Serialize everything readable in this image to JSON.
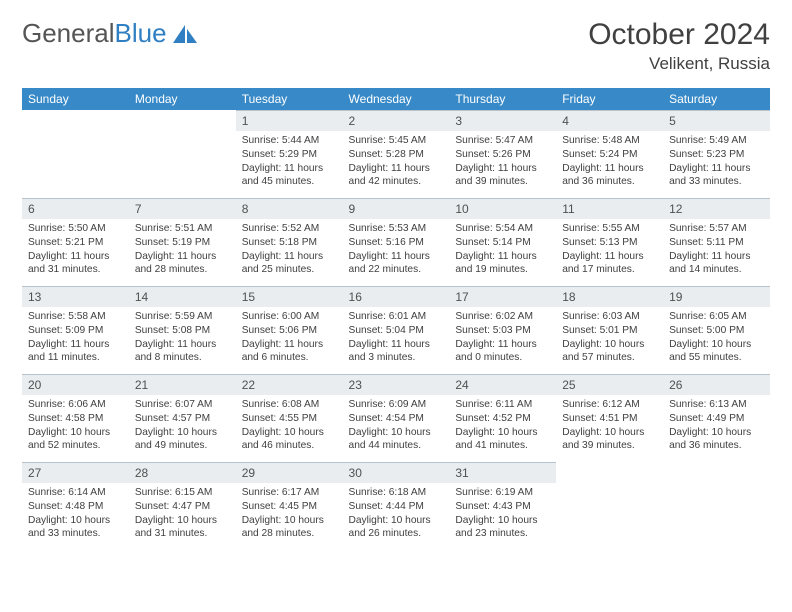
{
  "brand": {
    "part1": "General",
    "part2": "Blue"
  },
  "header": {
    "title": "October 2024",
    "location": "Velikent, Russia"
  },
  "colors": {
    "header_bg": "#3889c7",
    "header_fg": "#ffffff",
    "daynum_bg": "#e9edef",
    "daynum_border": "#b8c3cb",
    "text": "#404040",
    "logo_gray": "#555555",
    "logo_blue": "#2f7fc2",
    "page_bg": "#ffffff"
  },
  "weekdays": [
    "Sunday",
    "Monday",
    "Tuesday",
    "Wednesday",
    "Thursday",
    "Friday",
    "Saturday"
  ],
  "weeks": [
    [
      {
        "n": "",
        "sr": "",
        "ss": "",
        "dl": ""
      },
      {
        "n": "",
        "sr": "",
        "ss": "",
        "dl": ""
      },
      {
        "n": "1",
        "sr": "Sunrise: 5:44 AM",
        "ss": "Sunset: 5:29 PM",
        "dl": "Daylight: 11 hours and 45 minutes."
      },
      {
        "n": "2",
        "sr": "Sunrise: 5:45 AM",
        "ss": "Sunset: 5:28 PM",
        "dl": "Daylight: 11 hours and 42 minutes."
      },
      {
        "n": "3",
        "sr": "Sunrise: 5:47 AM",
        "ss": "Sunset: 5:26 PM",
        "dl": "Daylight: 11 hours and 39 minutes."
      },
      {
        "n": "4",
        "sr": "Sunrise: 5:48 AM",
        "ss": "Sunset: 5:24 PM",
        "dl": "Daylight: 11 hours and 36 minutes."
      },
      {
        "n": "5",
        "sr": "Sunrise: 5:49 AM",
        "ss": "Sunset: 5:23 PM",
        "dl": "Daylight: 11 hours and 33 minutes."
      }
    ],
    [
      {
        "n": "6",
        "sr": "Sunrise: 5:50 AM",
        "ss": "Sunset: 5:21 PM",
        "dl": "Daylight: 11 hours and 31 minutes."
      },
      {
        "n": "7",
        "sr": "Sunrise: 5:51 AM",
        "ss": "Sunset: 5:19 PM",
        "dl": "Daylight: 11 hours and 28 minutes."
      },
      {
        "n": "8",
        "sr": "Sunrise: 5:52 AM",
        "ss": "Sunset: 5:18 PM",
        "dl": "Daylight: 11 hours and 25 minutes."
      },
      {
        "n": "9",
        "sr": "Sunrise: 5:53 AM",
        "ss": "Sunset: 5:16 PM",
        "dl": "Daylight: 11 hours and 22 minutes."
      },
      {
        "n": "10",
        "sr": "Sunrise: 5:54 AM",
        "ss": "Sunset: 5:14 PM",
        "dl": "Daylight: 11 hours and 19 minutes."
      },
      {
        "n": "11",
        "sr": "Sunrise: 5:55 AM",
        "ss": "Sunset: 5:13 PM",
        "dl": "Daylight: 11 hours and 17 minutes."
      },
      {
        "n": "12",
        "sr": "Sunrise: 5:57 AM",
        "ss": "Sunset: 5:11 PM",
        "dl": "Daylight: 11 hours and 14 minutes."
      }
    ],
    [
      {
        "n": "13",
        "sr": "Sunrise: 5:58 AM",
        "ss": "Sunset: 5:09 PM",
        "dl": "Daylight: 11 hours and 11 minutes."
      },
      {
        "n": "14",
        "sr": "Sunrise: 5:59 AM",
        "ss": "Sunset: 5:08 PM",
        "dl": "Daylight: 11 hours and 8 minutes."
      },
      {
        "n": "15",
        "sr": "Sunrise: 6:00 AM",
        "ss": "Sunset: 5:06 PM",
        "dl": "Daylight: 11 hours and 6 minutes."
      },
      {
        "n": "16",
        "sr": "Sunrise: 6:01 AM",
        "ss": "Sunset: 5:04 PM",
        "dl": "Daylight: 11 hours and 3 minutes."
      },
      {
        "n": "17",
        "sr": "Sunrise: 6:02 AM",
        "ss": "Sunset: 5:03 PM",
        "dl": "Daylight: 11 hours and 0 minutes."
      },
      {
        "n": "18",
        "sr": "Sunrise: 6:03 AM",
        "ss": "Sunset: 5:01 PM",
        "dl": "Daylight: 10 hours and 57 minutes."
      },
      {
        "n": "19",
        "sr": "Sunrise: 6:05 AM",
        "ss": "Sunset: 5:00 PM",
        "dl": "Daylight: 10 hours and 55 minutes."
      }
    ],
    [
      {
        "n": "20",
        "sr": "Sunrise: 6:06 AM",
        "ss": "Sunset: 4:58 PM",
        "dl": "Daylight: 10 hours and 52 minutes."
      },
      {
        "n": "21",
        "sr": "Sunrise: 6:07 AM",
        "ss": "Sunset: 4:57 PM",
        "dl": "Daylight: 10 hours and 49 minutes."
      },
      {
        "n": "22",
        "sr": "Sunrise: 6:08 AM",
        "ss": "Sunset: 4:55 PM",
        "dl": "Daylight: 10 hours and 46 minutes."
      },
      {
        "n": "23",
        "sr": "Sunrise: 6:09 AM",
        "ss": "Sunset: 4:54 PM",
        "dl": "Daylight: 10 hours and 44 minutes."
      },
      {
        "n": "24",
        "sr": "Sunrise: 6:11 AM",
        "ss": "Sunset: 4:52 PM",
        "dl": "Daylight: 10 hours and 41 minutes."
      },
      {
        "n": "25",
        "sr": "Sunrise: 6:12 AM",
        "ss": "Sunset: 4:51 PM",
        "dl": "Daylight: 10 hours and 39 minutes."
      },
      {
        "n": "26",
        "sr": "Sunrise: 6:13 AM",
        "ss": "Sunset: 4:49 PM",
        "dl": "Daylight: 10 hours and 36 minutes."
      }
    ],
    [
      {
        "n": "27",
        "sr": "Sunrise: 6:14 AM",
        "ss": "Sunset: 4:48 PM",
        "dl": "Daylight: 10 hours and 33 minutes."
      },
      {
        "n": "28",
        "sr": "Sunrise: 6:15 AM",
        "ss": "Sunset: 4:47 PM",
        "dl": "Daylight: 10 hours and 31 minutes."
      },
      {
        "n": "29",
        "sr": "Sunrise: 6:17 AM",
        "ss": "Sunset: 4:45 PM",
        "dl": "Daylight: 10 hours and 28 minutes."
      },
      {
        "n": "30",
        "sr": "Sunrise: 6:18 AM",
        "ss": "Sunset: 4:44 PM",
        "dl": "Daylight: 10 hours and 26 minutes."
      },
      {
        "n": "31",
        "sr": "Sunrise: 6:19 AM",
        "ss": "Sunset: 4:43 PM",
        "dl": "Daylight: 10 hours and 23 minutes."
      },
      {
        "n": "",
        "sr": "",
        "ss": "",
        "dl": ""
      },
      {
        "n": "",
        "sr": "",
        "ss": "",
        "dl": ""
      }
    ]
  ]
}
